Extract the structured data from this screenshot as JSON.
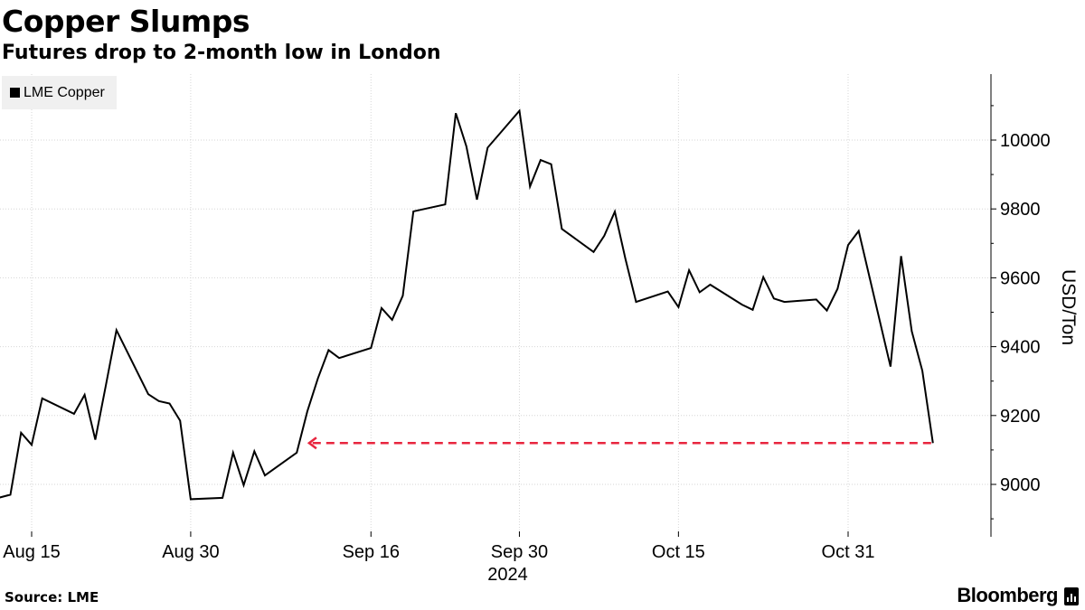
{
  "chart_data": {
    "type": "line",
    "title": "Copper Slumps",
    "subtitle": "Futures drop to 2-month low in London",
    "ylabel": "USD/Ton",
    "ylim": [
      8880,
      10200
    ],
    "yticks": [
      9000,
      9200,
      9400,
      9600,
      9800,
      10000
    ],
    "xticks": [
      {
        "label": "Aug 15",
        "date": "2024-08-15"
      },
      {
        "label": "Aug 30",
        "date": "2024-08-30"
      },
      {
        "label": "Sep 16",
        "date": "2024-09-16"
      },
      {
        "label": "Sep 30",
        "date": "2024-09-30"
      },
      {
        "label": "Oct 15",
        "date": "2024-10-15"
      },
      {
        "label": "Oct 31",
        "date": "2024-10-31"
      }
    ],
    "year_label": "2024",
    "legend": {
      "placement": "top-left",
      "entries": [
        "LME Copper"
      ]
    },
    "grid": true,
    "series": [
      {
        "name": "LME Copper",
        "color": "#000000",
        "points": [
          [
            "2024-08-12",
            8962
          ],
          [
            "2024-08-13",
            8970
          ],
          [
            "2024-08-14",
            9150
          ],
          [
            "2024-08-15",
            9115
          ],
          [
            "2024-08-16",
            9250
          ],
          [
            "2024-08-19",
            9205
          ],
          [
            "2024-08-20",
            9260
          ],
          [
            "2024-08-21",
            9130
          ],
          [
            "2024-08-22",
            9288
          ],
          [
            "2024-08-23",
            9448
          ],
          [
            "2024-08-26",
            9262
          ],
          [
            "2024-08-27",
            9242
          ],
          [
            "2024-08-28",
            9235
          ],
          [
            "2024-08-29",
            9185
          ],
          [
            "2024-08-30",
            8957
          ],
          [
            "2024-09-02",
            8961
          ],
          [
            "2024-09-03",
            9092
          ],
          [
            "2024-09-04",
            8998
          ],
          [
            "2024-09-05",
            9096
          ],
          [
            "2024-09-06",
            9026
          ],
          [
            "2024-09-09",
            9092
          ],
          [
            "2024-09-10",
            9212
          ],
          [
            "2024-09-11",
            9308
          ],
          [
            "2024-09-12",
            9390
          ],
          [
            "2024-09-13",
            9367
          ],
          [
            "2024-09-16",
            9396
          ],
          [
            "2024-09-17",
            9512
          ],
          [
            "2024-09-18",
            9478
          ],
          [
            "2024-09-19",
            9548
          ],
          [
            "2024-09-20",
            9793
          ],
          [
            "2024-09-23",
            9813
          ],
          [
            "2024-09-24",
            10078
          ],
          [
            "2024-09-25",
            9982
          ],
          [
            "2024-09-26",
            9827
          ],
          [
            "2024-09-27",
            9978
          ],
          [
            "2024-09-30",
            10085
          ],
          [
            "2024-10-01",
            9865
          ],
          [
            "2024-10-02",
            9942
          ],
          [
            "2024-10-03",
            9930
          ],
          [
            "2024-10-04",
            9742
          ],
          [
            "2024-10-07",
            9675
          ],
          [
            "2024-10-08",
            9722
          ],
          [
            "2024-10-09",
            9792
          ],
          [
            "2024-10-10",
            9655
          ],
          [
            "2024-10-11",
            9530
          ],
          [
            "2024-10-14",
            9560
          ],
          [
            "2024-10-15",
            9515
          ],
          [
            "2024-10-16",
            9622
          ],
          [
            "2024-10-17",
            9558
          ],
          [
            "2024-10-18",
            9580
          ],
          [
            "2024-10-21",
            9522
          ],
          [
            "2024-10-22",
            9507
          ],
          [
            "2024-10-23",
            9602
          ],
          [
            "2024-10-24",
            9540
          ],
          [
            "2024-10-25",
            9530
          ],
          [
            "2024-10-28",
            9537
          ],
          [
            "2024-10-29",
            9505
          ],
          [
            "2024-10-30",
            9568
          ],
          [
            "2024-10-31",
            9695
          ],
          [
            "2024-11-01",
            9736
          ],
          [
            "2024-11-04",
            9342
          ],
          [
            "2024-11-05",
            9663
          ],
          [
            "2024-11-06",
            9445
          ],
          [
            "2024-11-07",
            9330
          ],
          [
            "2024-11-08",
            9120
          ]
        ]
      }
    ],
    "annotations": [
      {
        "type": "dashed-arrow",
        "color": "#e8263f",
        "value": 9120,
        "from_date": "2024-11-08",
        "to_date": "2024-09-10"
      }
    ]
  },
  "footer": {
    "source": "Source: LME",
    "brand": "Bloomberg"
  }
}
